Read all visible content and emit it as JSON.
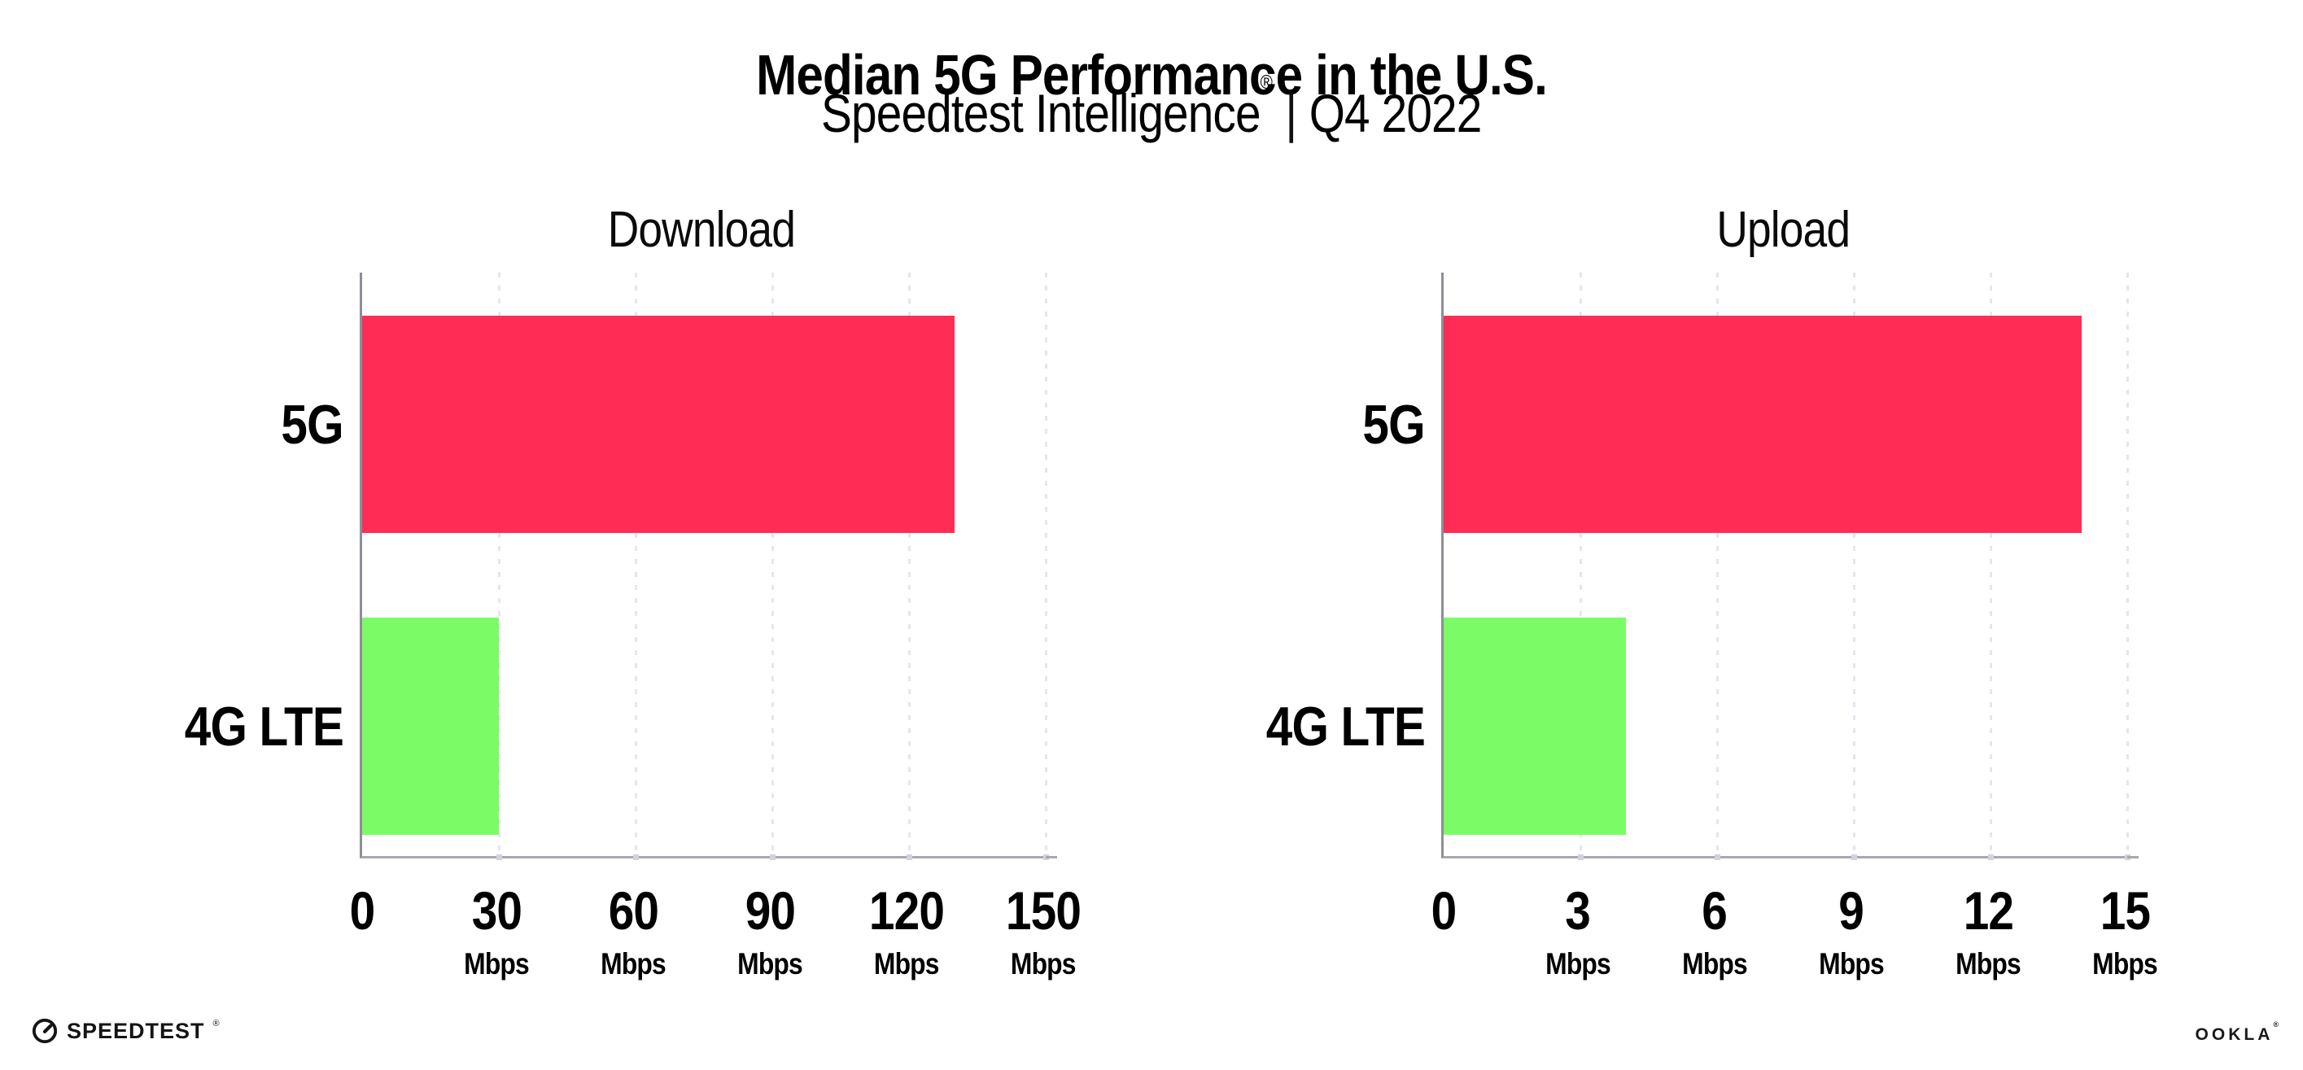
{
  "header": {
    "title": "Median 5G Performance in the U.S.",
    "subtitle_brand": "Speedtest Intelligence",
    "subtitle_reg": "®",
    "subtitle_separator": "|",
    "subtitle_period": "Q4 2022"
  },
  "chart_data": {
    "type": "bar",
    "orientation": "horizontal",
    "title": "Median 5G Performance in the U.S.",
    "subtitle": "Speedtest Intelligence® | Q4 2022",
    "categories": [
      "5G",
      "4G LTE"
    ],
    "colors": [
      "#ff2d55",
      "#7bfc66"
    ],
    "legend": "none",
    "grid": "vertical dotted gridlines at every tick",
    "panels": [
      {
        "title": "Download",
        "unit": "Mbps",
        "values": [
          130,
          30
        ],
        "xlim": [
          0,
          150
        ],
        "xticks": [
          0,
          30,
          60,
          90,
          120,
          150
        ],
        "tick_labels": [
          "0",
          "30",
          "60",
          "90",
          "120",
          "150"
        ]
      },
      {
        "title": "Upload",
        "unit": "Mbps",
        "values": [
          14,
          4
        ],
        "xlim": [
          0,
          15
        ],
        "xticks": [
          0,
          3,
          6,
          9,
          12,
          15
        ],
        "tick_labels": [
          "0",
          "3",
          "6",
          "9",
          "12",
          "15"
        ]
      }
    ]
  },
  "footer": {
    "speedtest_text": "SPEEDTEST",
    "speedtest_mark": "®",
    "ookla_text": "OOKLA",
    "ookla_mark": "®"
  }
}
